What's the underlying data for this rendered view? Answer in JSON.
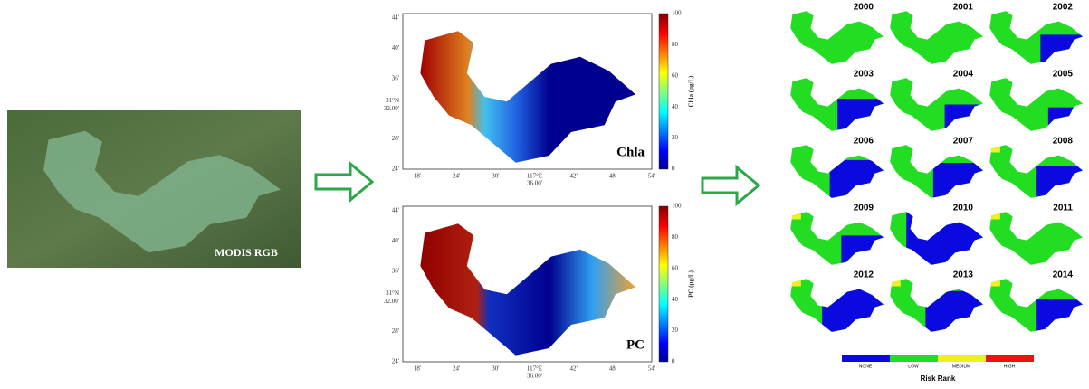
{
  "photo": {
    "label": "MODIS RGB"
  },
  "maps": [
    {
      "label": "Chla",
      "colorbar_label": "Chla (μg/L)",
      "colorbar_ticks": [
        "0",
        "20",
        "40",
        "60",
        "80",
        "100"
      ],
      "y_ticks": [
        "44'",
        "40'",
        "36'",
        "32.00'",
        "28'",
        "24'"
      ],
      "y_axis_label": "31°N",
      "x_ticks": [
        "18'",
        "24'",
        "30'",
        "36.00'",
        "42'",
        "48'",
        "54'"
      ],
      "x_axis_label": "117°E"
    },
    {
      "label": "PC",
      "colorbar_label": "PC (μg/L)",
      "colorbar_ticks": [
        "0",
        "20",
        "40",
        "60",
        "80",
        "100"
      ],
      "y_ticks": [
        "44'",
        "40'",
        "36'",
        "32.00'",
        "28'",
        "24'"
      ],
      "y_axis_label": "31°N",
      "x_ticks": [
        "18'",
        "24'",
        "30'",
        "36.00'",
        "42'",
        "48'",
        "54'"
      ],
      "x_axis_label": "117°E"
    }
  ],
  "years": [
    "2000",
    "2001",
    "2002",
    "2003",
    "2004",
    "2005",
    "2006",
    "2007",
    "2008",
    "2009",
    "2010",
    "2011",
    "2012",
    "2013",
    "2014"
  ],
  "legend": {
    "labels": [
      "NONE",
      "LOW",
      "MEDIUM",
      "HIGH"
    ],
    "title": "Risk Rank"
  }
}
